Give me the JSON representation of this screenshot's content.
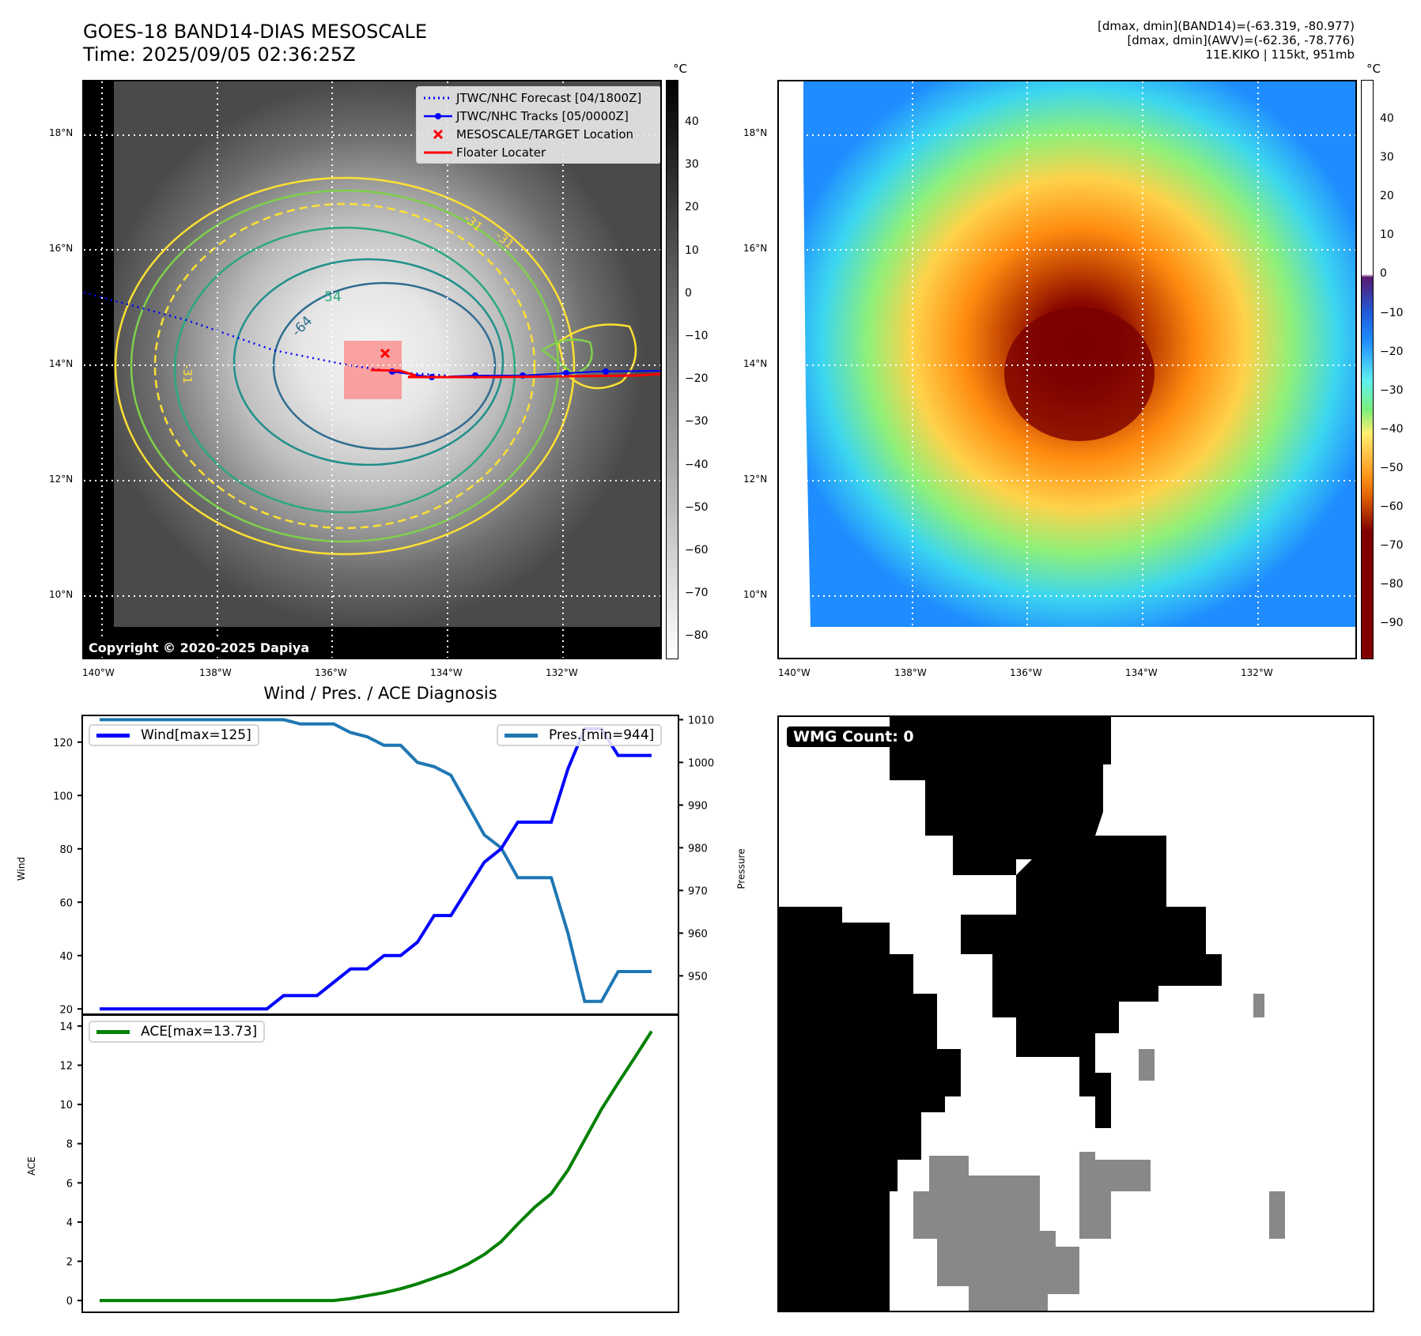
{
  "header": {
    "title": "GOES-18 BAND14-DIAS MESOSCALE",
    "time": "Time: 2025/09/05 02:36:25Z",
    "info_line1": "[dmax, dmin](BAND14)=(-63.319, -80.977)",
    "info_line2": "[dmax, dmin](AWV)=(-62.36, -78.776)",
    "info_line3": "11E.KIKO | 115kt, 951mb"
  },
  "map_left": {
    "lat_ticks": [
      "18°N",
      "16°N",
      "14°N",
      "12°N",
      "10°N"
    ],
    "lon_ticks": [
      "140°W",
      "138°W",
      "136°W",
      "134°W",
      "132°W"
    ],
    "legend": [
      {
        "label": "JTWC/NHC Forecast [04/1800Z]",
        "symbol": "dotted-line-icon",
        "color": "#0000ff"
      },
      {
        "label": "JTWC/NHC Tracks [05/0000Z]",
        "symbol": "line-dot-icon",
        "color": "#0000ff"
      },
      {
        "label": "MESOSCALE/TARGET Location",
        "symbol": "x-marker-icon",
        "color": "#ff0000"
      },
      {
        "label": "Floater Locater",
        "symbol": "solid-line-icon",
        "color": "#ff0000"
      }
    ],
    "contour_labels": [
      "-54",
      "-64",
      "-31",
      "-31",
      "-31"
    ],
    "copyright": "Copyright © 2020-2025 Dapiya",
    "colorbar": {
      "unit": "°C",
      "ticks": [
        "40",
        "30",
        "20",
        "10",
        "0",
        "−10",
        "−20",
        "−30",
        "−40",
        "−50",
        "−60",
        "−70",
        "−80"
      ]
    }
  },
  "map_right": {
    "lat_ticks": [
      "18°N",
      "16°N",
      "14°N",
      "12°N",
      "10°N"
    ],
    "lon_ticks": [
      "140°W",
      "138°W",
      "136°W",
      "134°W",
      "132°W"
    ],
    "colorbar": {
      "unit": "°C",
      "ticks": [
        "40",
        "30",
        "20",
        "10",
        "0",
        "−10",
        "−20",
        "−30",
        "−40",
        "−50",
        "−60",
        "−70",
        "−80",
        "−90"
      ]
    }
  },
  "diagnosis_title": "Wind / Pres. / ACE Diagnosis",
  "wmg": {
    "label": "WMG Count: 0"
  },
  "chart_data": [
    {
      "type": "line",
      "title": "Wind / Pres. / ACE Diagnosis",
      "xlabel": "",
      "ylabel": "Wind",
      "y2label": "Pressure",
      "ylim": [
        18,
        130
      ],
      "y2lim": [
        941,
        1011
      ],
      "yticks": [
        "120",
        "100",
        "80",
        "60",
        "40",
        "20"
      ],
      "y2ticks": [
        "1010",
        "1000",
        "990",
        "980",
        "970",
        "960",
        "950"
      ],
      "series": [
        {
          "name": "Wind[max=125]",
          "axis": "left",
          "color": "#0000ff",
          "values": [
            20,
            20,
            20,
            20,
            20,
            20,
            20,
            20,
            20,
            20,
            20,
            25,
            25,
            25,
            30,
            35,
            35,
            40,
            40,
            45,
            55,
            55,
            65,
            75,
            80,
            90,
            90,
            90,
            110,
            125,
            125,
            115,
            115,
            115
          ]
        },
        {
          "name": "Pres.[min=944]",
          "axis": "right",
          "color": "#1f77b4",
          "values": [
            1010,
            1010,
            1010,
            1010,
            1010,
            1010,
            1010,
            1010,
            1010,
            1010,
            1010,
            1010,
            1009,
            1009,
            1009,
            1007,
            1006,
            1004,
            1004,
            1000,
            999,
            997,
            990,
            983,
            980,
            973,
            973,
            973,
            960,
            944,
            944,
            951,
            951,
            951
          ]
        }
      ],
      "legend": "upper-left / upper-right"
    },
    {
      "type": "line",
      "xlabel": "",
      "ylabel": "ACE",
      "ylim": [
        -0.6,
        14.6
      ],
      "yticks": [
        "14",
        "12",
        "10",
        "8",
        "6",
        "4",
        "2",
        "0"
      ],
      "series": [
        {
          "name": "ACE[max=13.73]",
          "color": "#008000",
          "values": [
            0,
            0,
            0,
            0,
            0,
            0,
            0,
            0,
            0,
            0,
            0,
            0,
            0,
            0,
            0,
            0.1,
            0.25,
            0.4,
            0.6,
            0.85,
            1.15,
            1.45,
            1.85,
            2.35,
            3.0,
            3.9,
            4.75,
            5.45,
            6.65,
            8.2,
            9.75,
            11.1,
            12.4,
            13.73
          ]
        }
      ],
      "legend": "upper-left"
    }
  ]
}
